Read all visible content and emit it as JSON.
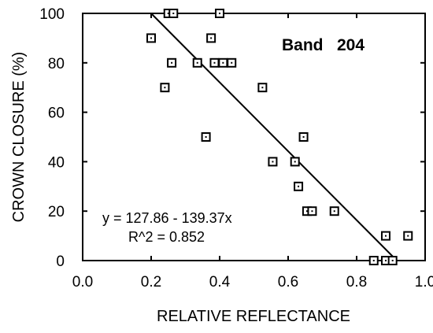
{
  "chart_data": {
    "type": "scatter",
    "title": "",
    "xlabel": "RELATIVE REFLECTANCE",
    "ylabel": "CROWN CLOSURE (%)",
    "xlim": [
      0.0,
      1.0
    ],
    "ylim": [
      0,
      100
    ],
    "x_ticks": [
      "0.0",
      "0.2",
      "0.4",
      "0.6",
      "0.8",
      "1.0"
    ],
    "y_ticks": [
      "0",
      "20",
      "40",
      "60",
      "80",
      "100"
    ],
    "x_tick_values": [
      0.0,
      0.2,
      0.4,
      0.6,
      0.8,
      1.0
    ],
    "y_tick_values": [
      0,
      20,
      40,
      60,
      80,
      100
    ],
    "band_label": "Band   204",
    "equation": "y = 127.86 - 139.37x",
    "r_squared": "R^2 = 0.852",
    "regression": {
      "intercept": 127.86,
      "slope": -139.37
    },
    "points": [
      {
        "x": 0.2,
        "y": 90
      },
      {
        "x": 0.24,
        "y": 70
      },
      {
        "x": 0.25,
        "y": 100
      },
      {
        "x": 0.265,
        "y": 100
      },
      {
        "x": 0.26,
        "y": 80
      },
      {
        "x": 0.335,
        "y": 80
      },
      {
        "x": 0.36,
        "y": 50
      },
      {
        "x": 0.375,
        "y": 90
      },
      {
        "x": 0.385,
        "y": 80
      },
      {
        "x": 0.4,
        "y": 100
      },
      {
        "x": 0.41,
        "y": 80
      },
      {
        "x": 0.435,
        "y": 80
      },
      {
        "x": 0.525,
        "y": 70
      },
      {
        "x": 0.555,
        "y": 40
      },
      {
        "x": 0.62,
        "y": 40
      },
      {
        "x": 0.63,
        "y": 30
      },
      {
        "x": 0.645,
        "y": 50
      },
      {
        "x": 0.655,
        "y": 20
      },
      {
        "x": 0.67,
        "y": 20
      },
      {
        "x": 0.735,
        "y": 20
      },
      {
        "x": 0.85,
        "y": 0
      },
      {
        "x": 0.885,
        "y": 10
      },
      {
        "x": 0.885,
        "y": 0
      },
      {
        "x": 0.905,
        "y": 0
      },
      {
        "x": 0.95,
        "y": 10
      }
    ]
  }
}
